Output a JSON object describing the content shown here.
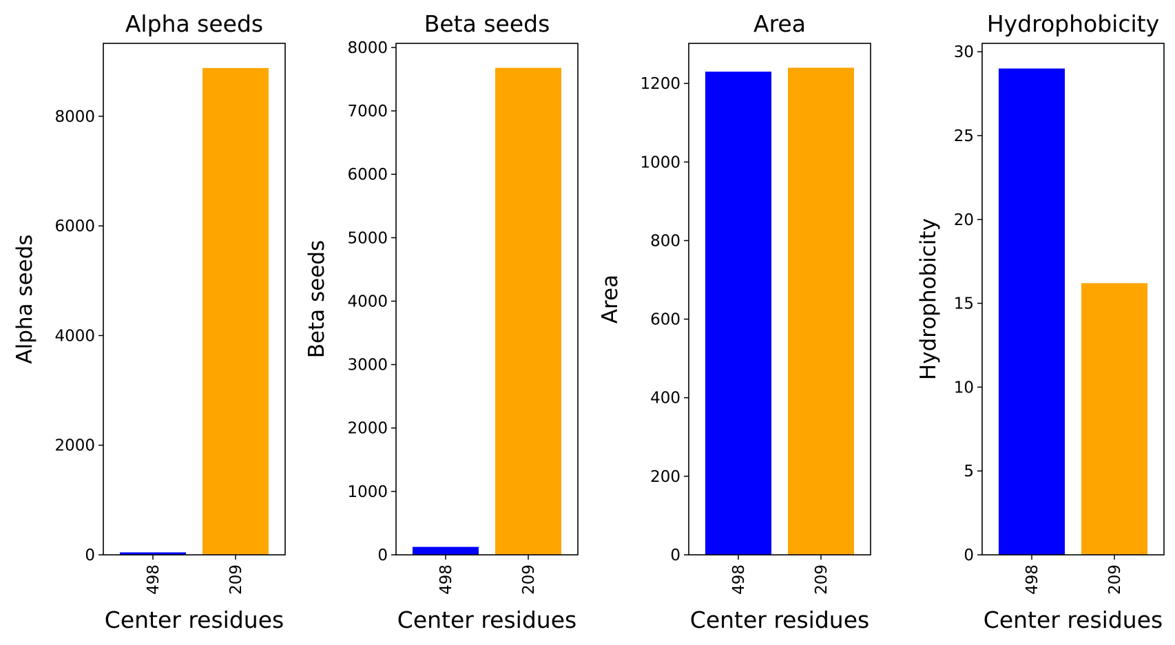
{
  "chart_data": [
    {
      "type": "bar",
      "title": "Alpha seeds",
      "xlabel": "Center residues",
      "ylabel": "Alpha seeds",
      "categories": [
        "498",
        "209"
      ],
      "values": [
        45,
        8880
      ],
      "colors": [
        "#0000ff",
        "#ffa500"
      ],
      "ylim": [
        0,
        9330
      ],
      "yticks": [
        0,
        2000,
        4000,
        6000,
        8000
      ],
      "grid": false
    },
    {
      "type": "bar",
      "title": "Beta seeds",
      "xlabel": "Center residues",
      "ylabel": "Beta seeds",
      "categories": [
        "498",
        "209"
      ],
      "values": [
        125,
        7680
      ],
      "colors": [
        "#0000ff",
        "#ffa500"
      ],
      "ylim": [
        0,
        8065
      ],
      "yticks": [
        0,
        1000,
        2000,
        3000,
        4000,
        5000,
        6000,
        7000,
        8000
      ],
      "grid": false
    },
    {
      "type": "bar",
      "title": "Area",
      "xlabel": "Center residues",
      "ylabel": "Area",
      "categories": [
        "498",
        "209"
      ],
      "values": [
        1230,
        1240
      ],
      "colors": [
        "#0000ff",
        "#ffa500"
      ],
      "ylim": [
        0,
        1302
      ],
      "yticks": [
        0,
        200,
        400,
        600,
        800,
        1000,
        1200
      ],
      "grid": false
    },
    {
      "type": "bar",
      "title": "Hydrophobicity",
      "xlabel": "Center residues",
      "ylabel": "Hydrophobicity",
      "categories": [
        "498",
        "209"
      ],
      "values": [
        29.0,
        16.2
      ],
      "colors": [
        "#0000ff",
        "#ffa500"
      ],
      "ylim": [
        0,
        30.5
      ],
      "yticks": [
        0,
        5,
        10,
        15,
        20,
        25,
        30
      ],
      "grid": false
    }
  ]
}
